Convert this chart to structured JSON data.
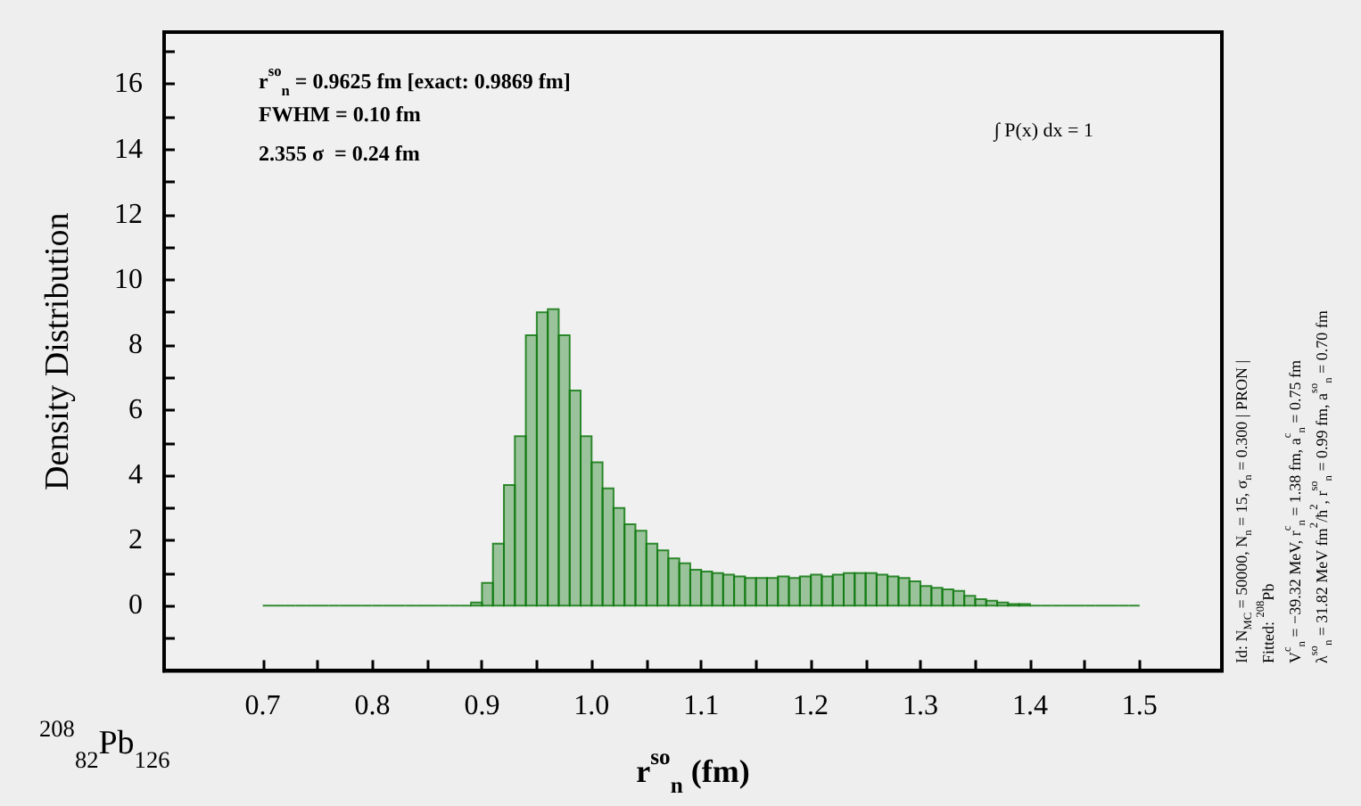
{
  "chart_data": {
    "type": "histogram",
    "xlabel": "r$^{so}$$_{n}$ (fm)",
    "ylabel": "Density Distribution",
    "bins": [
      0.7,
      0.71,
      0.72,
      0.73,
      0.74,
      0.75,
      0.76,
      0.77,
      0.78,
      0.79,
      0.8,
      0.81,
      0.82,
      0.83,
      0.84,
      0.85,
      0.86,
      0.87,
      0.88,
      0.89,
      0.9,
      0.91,
      0.92,
      0.93,
      0.94,
      0.95,
      0.96,
      0.97,
      0.98,
      0.99,
      1.0,
      1.01,
      1.02,
      1.03,
      1.04,
      1.05,
      1.06,
      1.07,
      1.08,
      1.09,
      1.1,
      1.11,
      1.12,
      1.13,
      1.14,
      1.15,
      1.16,
      1.17,
      1.18,
      1.19,
      1.2,
      1.21,
      1.22,
      1.23,
      1.24,
      1.25,
      1.26,
      1.27,
      1.28,
      1.29,
      1.3,
      1.31,
      1.32,
      1.33,
      1.34,
      1.35,
      1.36,
      1.37,
      1.38,
      1.39,
      1.4,
      1.41,
      1.42,
      1.43,
      1.44,
      1.45,
      1.46,
      1.47,
      1.48,
      1.49,
      1.5
    ],
    "values": [
      0,
      0,
      0,
      0,
      0,
      0,
      0,
      0,
      0,
      0,
      0,
      0,
      0,
      0,
      0,
      0,
      0,
      0,
      0,
      0.1,
      0.7,
      1.9,
      3.7,
      5.2,
      8.3,
      9.0,
      9.1,
      8.3,
      6.6,
      5.2,
      4.4,
      3.6,
      3.0,
      2.5,
      2.3,
      1.9,
      1.7,
      1.45,
      1.3,
      1.1,
      1.05,
      1.0,
      0.95,
      0.9,
      0.85,
      0.85,
      0.85,
      0.9,
      0.85,
      0.9,
      0.95,
      0.9,
      0.95,
      1.0,
      1.0,
      1.0,
      0.95,
      0.9,
      0.85,
      0.75,
      0.6,
      0.55,
      0.5,
      0.45,
      0.3,
      0.2,
      0.15,
      0.1,
      0.05,
      0.05,
      0,
      0,
      0,
      0,
      0,
      0,
      0,
      0,
      0,
      0
    ],
    "color": "#127a12",
    "xlim": [
      0.61,
      1.575
    ],
    "xticks": [
      0.7,
      {
        "value": 0.75,
        "label": null
      },
      0.8,
      {
        "value": 0.85,
        "label": null
      },
      0.9,
      {
        "value": 0.95,
        "label": null
      },
      {
        "value": 1.0,
        "label": "1.0"
      },
      {
        "value": 1.05,
        "label": null
      },
      1.1,
      {
        "value": 1.15,
        "label": null
      },
      1.2,
      {
        "value": 1.25,
        "label": null
      },
      1.3,
      {
        "value": 1.35,
        "label": null
      },
      1.4,
      {
        "value": 1.45,
        "label": null
      },
      1.5
    ],
    "ylim": [
      -2,
      17.6
    ],
    "yticks": [
      {
        "value": -1,
        "label": null
      },
      0,
      {
        "value": 1,
        "label": null
      },
      2,
      {
        "value": 3,
        "label": null
      },
      4,
      {
        "value": 5,
        "label": null
      },
      6,
      {
        "value": 7,
        "label": null
      },
      8,
      {
        "value": 9,
        "label": null
      },
      10,
      {
        "value": 11,
        "label": null
      },
      12,
      {
        "value": 13,
        "label": null
      },
      14,
      {
        "value": 15,
        "label": null
      },
      16,
      {
        "value": 17,
        "label": null
      }
    ],
    "grid": false,
    "annotations": [
      "r$^{so}$$_{n}$ = 0.9625 fm [exact: 0.9869 fm]",
      "FWHM = 0.10 fm",
      "2.355 σ  = 0.24 fm",
      "∫ P(x) dx = 1",
      "Id: N$_{MC}$ = 50000, N$_{n}$ = 15, σ$_{n}$ = 0.300 | PRON |",
      "Fitted: $^{208}$Pb",
      "V$^{c}$$_{n}$ = −39.32 MeV, r$^{c}$$_{n}$ = 1.38 fm, a$^{c}$$_{n}$ = 0.75 fm",
      "λ$^{so}$$_{n}$ = 31.82 MeV fm$^{2}$/ħ$^{2}$, r$^{so}$$_{n}$ = 0.99 fm, a$^{so}$$_{n}$ = 0.70 fm",
      "$^{208}$$_{82}$Pb$_{126}$"
    ]
  }
}
